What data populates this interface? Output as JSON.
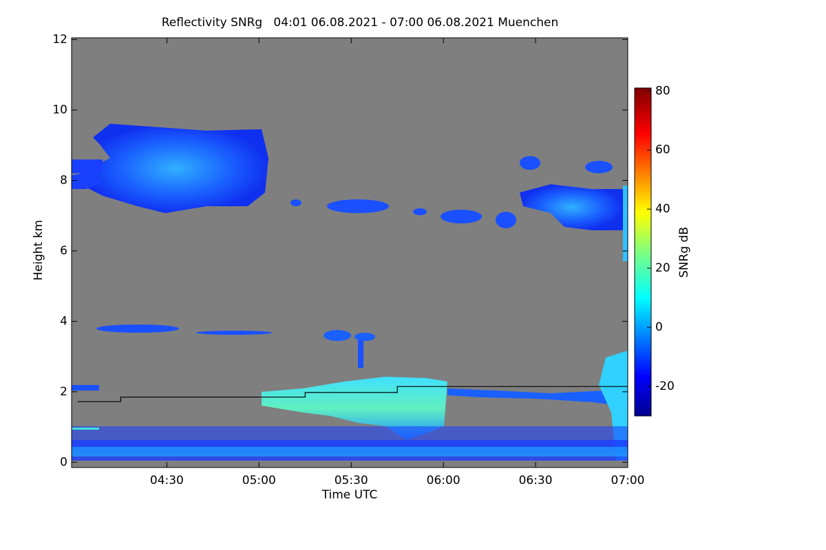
{
  "chart_data": {
    "type": "heatmap",
    "title": "Reflectivity SNRg   04:01 06.08.2021 - 07:00 06.08.2021 Muenchen",
    "xlabel": "Time UTC",
    "ylabel": "Height km",
    "xlim": [
      239,
      420
    ],
    "xticks": [
      {
        "value": 270,
        "label": "04:30"
      },
      {
        "value": 300,
        "label": "05:00"
      },
      {
        "value": 330,
        "label": "05:30"
      },
      {
        "value": 360,
        "label": "06:00"
      },
      {
        "value": 390,
        "label": "06:30"
      },
      {
        "value": 420,
        "label": "07:00"
      }
    ],
    "ylim": [
      -0.15,
      12.05
    ],
    "yticks": [
      0,
      2,
      4,
      6,
      8,
      10,
      12
    ],
    "series": [
      {
        "color": "#000000",
        "x": [
          241,
          255,
          255,
          315,
          315,
          345,
          345,
          420
        ],
        "values": [
          1.72,
          1.72,
          1.85,
          1.85,
          1.98,
          1.98,
          2.15,
          2.15
        ]
      }
    ],
    "colorbar": {
      "label": "SNRg dB",
      "lim": [
        -30,
        81
      ],
      "ticks": [
        -20,
        0,
        20,
        40,
        60,
        80
      ]
    }
  }
}
